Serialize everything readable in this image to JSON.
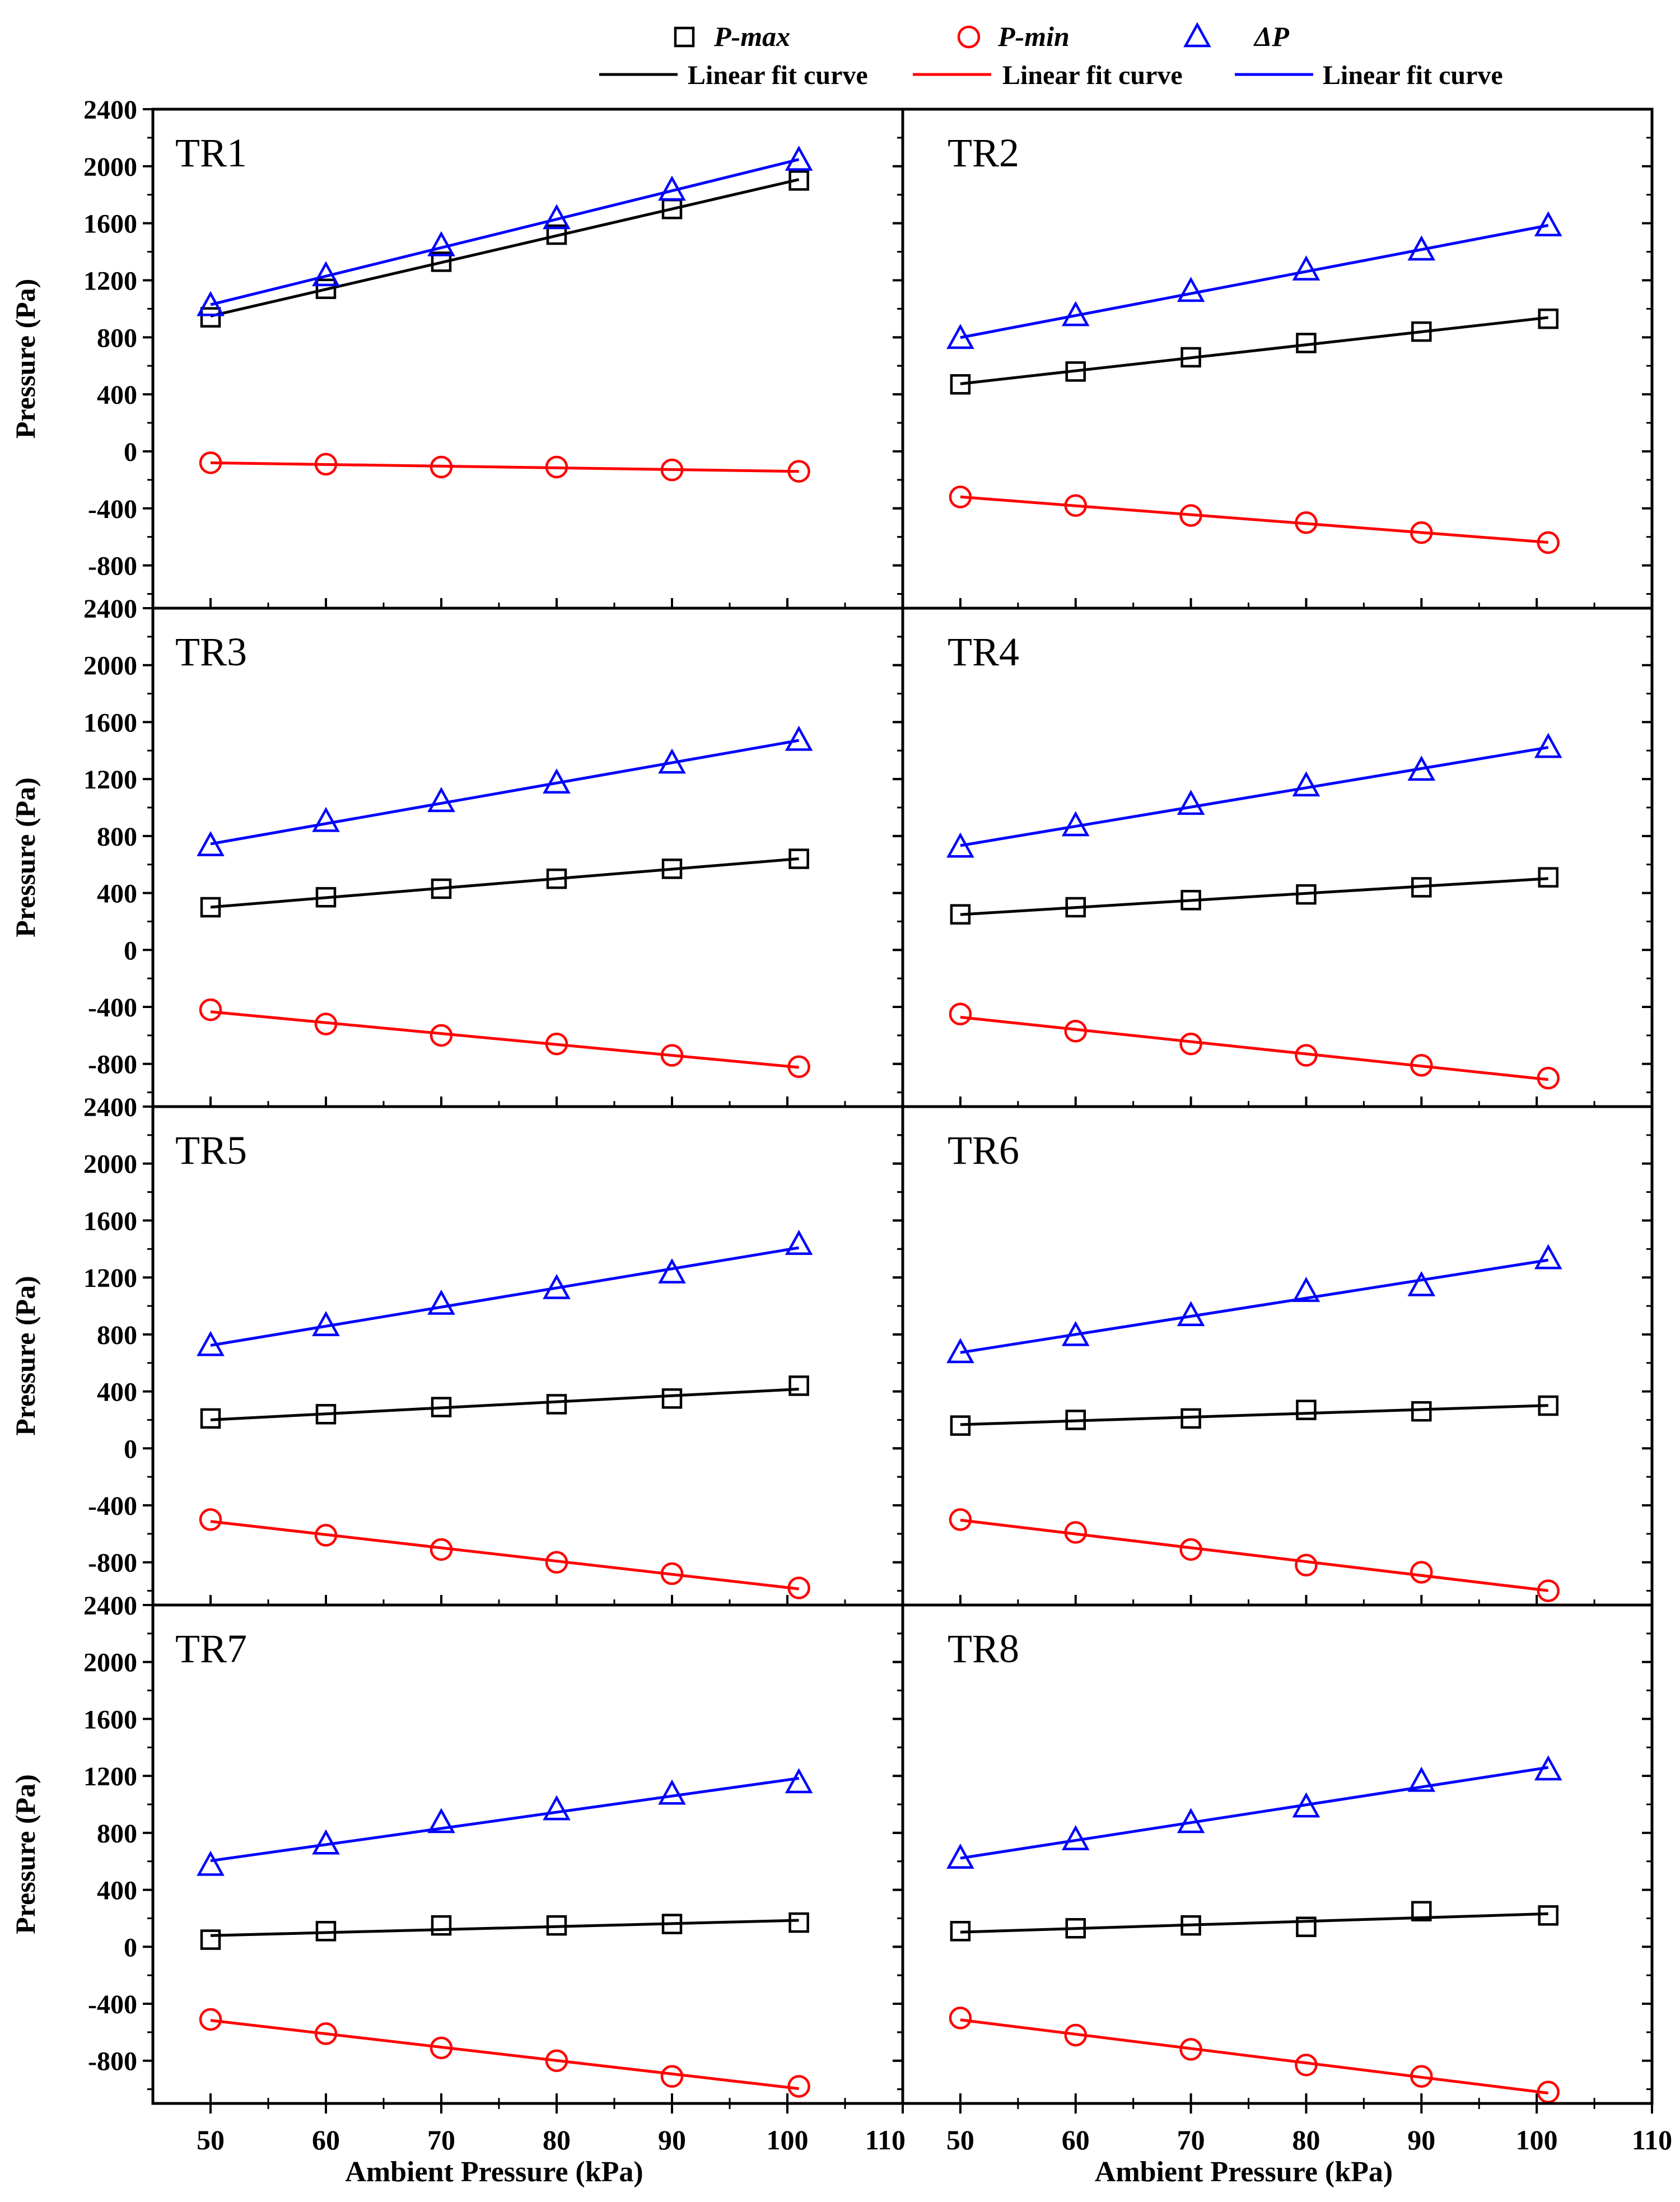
{
  "legend": {
    "items": [
      {
        "label": "P-max",
        "marker": "square",
        "color": "#000000",
        "italic": true
      },
      {
        "label": "P-min",
        "marker": "circle",
        "color": "#ff0000",
        "italic": true
      },
      {
        "label": "ΔP",
        "marker": "triangle",
        "color": "#0000ff",
        "italic": true
      }
    ],
    "fit_items": [
      {
        "label": "Linear fit curve",
        "color": "#000000"
      },
      {
        "label": "Linear fit curve",
        "color": "#ff0000"
      },
      {
        "label": "Linear fit curve",
        "color": "#0000ff"
      }
    ]
  },
  "chart_data": [
    {
      "type": "scatter",
      "title": "TR1",
      "xlabel": "Ambient Pressure (kPa)",
      "ylabel": "Pressure (Pa)",
      "xlim": [
        45,
        110
      ],
      "ylim": [
        -1100,
        2400
      ],
      "x_ticks": [
        "50",
        "60",
        "70",
        "80",
        "90",
        "100",
        "110"
      ],
      "y_ticks": [
        "2400",
        "2000",
        "1600",
        "1200",
        "800",
        "400",
        "0",
        "-400",
        "-800"
      ],
      "x": [
        50,
        60,
        70,
        80,
        90,
        101
      ],
      "series": [
        {
          "name": "P-max",
          "values": [
            940,
            1140,
            1330,
            1520,
            1700,
            1900
          ]
        },
        {
          "name": "P-min",
          "values": [
            -80,
            -90,
            -110,
            -110,
            -130,
            -140
          ]
        },
        {
          "name": "ΔP",
          "values": [
            1020,
            1230,
            1440,
            1630,
            1830,
            2040
          ]
        }
      ]
    },
    {
      "type": "scatter",
      "title": "TR2",
      "xlabel": "Ambient Pressure (kPa)",
      "ylabel": "Pressure (Pa)",
      "xlim": [
        45,
        110
      ],
      "ylim": [
        -1100,
        2400
      ],
      "x_ticks": [
        "50",
        "60",
        "70",
        "80",
        "90",
        "100",
        "110"
      ],
      "y_ticks": [
        "2400",
        "2000",
        "1600",
        "1200",
        "800",
        "400",
        "0",
        "-400",
        "-800"
      ],
      "x": [
        50,
        60,
        70,
        80,
        90,
        101
      ],
      "series": [
        {
          "name": "P-max",
          "values": [
            470,
            560,
            660,
            760,
            840,
            930
          ]
        },
        {
          "name": "P-min",
          "values": [
            -320,
            -380,
            -450,
            -500,
            -570,
            -640
          ]
        },
        {
          "name": "ΔP",
          "values": [
            790,
            950,
            1120,
            1270,
            1410,
            1580
          ]
        }
      ]
    },
    {
      "type": "scatter",
      "title": "TR3",
      "xlabel": "Ambient Pressure (kPa)",
      "ylabel": "Pressure (Pa)",
      "xlim": [
        45,
        110
      ],
      "ylim": [
        -1100,
        2400
      ],
      "x_ticks": [
        "50",
        "60",
        "70",
        "80",
        "90",
        "100",
        "110"
      ],
      "y_ticks": [
        "2400",
        "2000",
        "1600",
        "1200",
        "800",
        "400",
        "0",
        "-400",
        "-800"
      ],
      "x": [
        50,
        60,
        70,
        80,
        90,
        101
      ],
      "series": [
        {
          "name": "P-max",
          "values": [
            300,
            370,
            430,
            500,
            570,
            640
          ]
        },
        {
          "name": "P-min",
          "values": [
            -420,
            -520,
            -600,
            -660,
            -740,
            -820
          ]
        },
        {
          "name": "ΔP",
          "values": [
            730,
            900,
            1040,
            1170,
            1310,
            1470
          ]
        }
      ]
    },
    {
      "type": "scatter",
      "title": "TR4",
      "xlabel": "Ambient Pressure (kPa)",
      "ylabel": "Pressure (Pa)",
      "xlim": [
        45,
        110
      ],
      "ylim": [
        -1100,
        2400
      ],
      "x_ticks": [
        "50",
        "60",
        "70",
        "80",
        "90",
        "100",
        "110"
      ],
      "y_ticks": [
        "2400",
        "2000",
        "1600",
        "1200",
        "800",
        "400",
        "0",
        "-400",
        "-800"
      ],
      "x": [
        50,
        60,
        70,
        80,
        90,
        101
      ],
      "series": [
        {
          "name": "P-max",
          "values": [
            250,
            300,
            350,
            390,
            440,
            510
          ]
        },
        {
          "name": "P-min",
          "values": [
            -450,
            -570,
            -660,
            -740,
            -810,
            -900
          ]
        },
        {
          "name": "ΔP",
          "values": [
            720,
            870,
            1020,
            1150,
            1260,
            1420
          ]
        }
      ]
    },
    {
      "type": "scatter",
      "title": "TR5",
      "xlabel": "Ambient Pressure (kPa)",
      "ylabel": "Pressure (Pa)",
      "xlim": [
        45,
        110
      ],
      "ylim": [
        -1100,
        2400
      ],
      "x_ticks": [
        "50",
        "60",
        "70",
        "80",
        "90",
        "100",
        "110"
      ],
      "y_ticks": [
        "2400",
        "2000",
        "1600",
        "1200",
        "800",
        "400",
        "0",
        "-400",
        "-800"
      ],
      "x": [
        50,
        60,
        70,
        80,
        90,
        101
      ],
      "series": [
        {
          "name": "P-max",
          "values": [
            210,
            240,
            290,
            310,
            350,
            440
          ]
        },
        {
          "name": "P-min",
          "values": [
            -500,
            -610,
            -710,
            -800,
            -880,
            -980
          ]
        },
        {
          "name": "ΔP",
          "values": [
            720,
            860,
            1010,
            1120,
            1230,
            1430
          ]
        }
      ]
    },
    {
      "type": "scatter",
      "title": "TR6",
      "xlabel": "Ambient Pressure (kPa)",
      "ylabel": "Pressure (Pa)",
      "xlim": [
        45,
        110
      ],
      "ylim": [
        -1100,
        2400
      ],
      "x_ticks": [
        "50",
        "60",
        "70",
        "80",
        "90",
        "100",
        "110"
      ],
      "y_ticks": [
        "2400",
        "2000",
        "1600",
        "1200",
        "800",
        "400",
        "0",
        "-400",
        "-800"
      ],
      "x": [
        50,
        60,
        70,
        80,
        90,
        101
      ],
      "series": [
        {
          "name": "P-max",
          "values": [
            160,
            200,
            210,
            270,
            260,
            300
          ]
        },
        {
          "name": "P-min",
          "values": [
            -500,
            -590,
            -710,
            -820,
            -870,
            -1000
          ]
        },
        {
          "name": "ΔP",
          "values": [
            670,
            790,
            930,
            1100,
            1140,
            1330
          ]
        }
      ]
    },
    {
      "type": "scatter",
      "title": "TR7",
      "xlabel": "Ambient Pressure (kPa)",
      "ylabel": "Pressure (Pa)",
      "xlim": [
        45,
        110
      ],
      "ylim": [
        -1100,
        2400
      ],
      "x_ticks": [
        "50",
        "60",
        "70",
        "80",
        "90",
        "100",
        "110"
      ],
      "y_ticks": [
        "2400",
        "2000",
        "1600",
        "1200",
        "800",
        "400",
        "0",
        "-400",
        "-800"
      ],
      "x": [
        50,
        60,
        70,
        80,
        90,
        101
      ],
      "series": [
        {
          "name": "P-max",
          "values": [
            50,
            110,
            150,
            150,
            160,
            170
          ]
        },
        {
          "name": "P-min",
          "values": [
            -510,
            -610,
            -710,
            -800,
            -910,
            -980
          ]
        },
        {
          "name": "ΔP",
          "values": [
            570,
            720,
            870,
            960,
            1070,
            1150
          ]
        }
      ]
    },
    {
      "type": "scatter",
      "title": "TR8",
      "xlabel": "Ambient Pressure (kPa)",
      "ylabel": "Pressure (Pa)",
      "xlim": [
        45,
        110
      ],
      "ylim": [
        -1100,
        2400
      ],
      "x_ticks": [
        "50",
        "60",
        "70",
        "80",
        "90",
        "100",
        "110"
      ],
      "y_ticks": [
        "2400",
        "2000",
        "1600",
        "1200",
        "800",
        "400",
        "0",
        "-400",
        "-800"
      ],
      "x": [
        50,
        60,
        70,
        80,
        90,
        101
      ],
      "series": [
        {
          "name": "P-max",
          "values": [
            110,
            130,
            150,
            140,
            250,
            220
          ]
        },
        {
          "name": "P-min",
          "values": [
            -500,
            -620,
            -720,
            -830,
            -910,
            -1020
          ]
        },
        {
          "name": "ΔP",
          "values": [
            620,
            750,
            870,
            980,
            1160,
            1240
          ]
        }
      ]
    }
  ]
}
